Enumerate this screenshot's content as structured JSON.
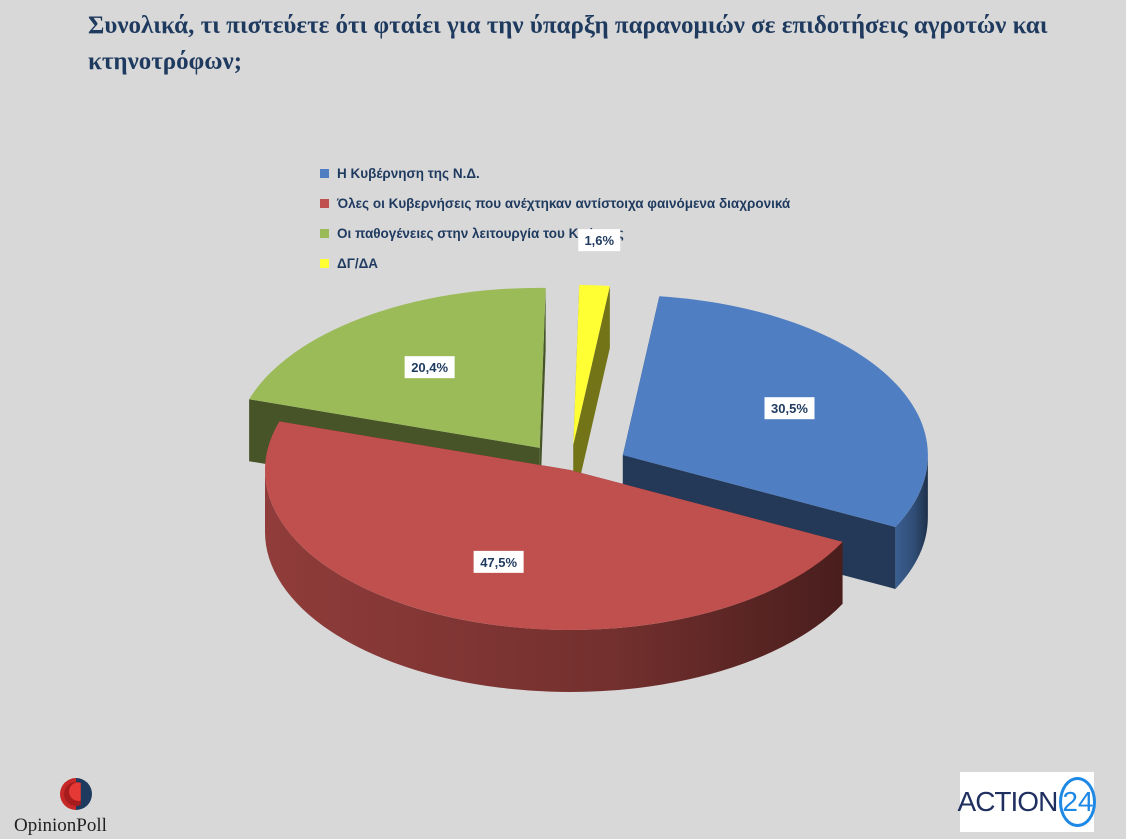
{
  "title": "Συνολικά, τι πιστεύετε ότι φταίει για την ύπαρξη παρανομιών σε επιδοτήσεις αγροτών και κτηνοτρόφων;",
  "chart_data": {
    "type": "pie",
    "title": "Συνολικά, τι πιστεύετε ότι φταίει για την ύπαρξη παρανομιών σε επιδοτήσεις αγροτών και κτηνοτρόφων;",
    "categories": [
      "Η Κυβέρνηση της Ν.Δ.",
      "Όλες οι Κυβερνήσεις που ανέχτηκαν αντίστοιχα φαινόμενα διαχρονικά",
      "Οι παθογένειες στην λειτουργία του Κράτους",
      "ΔΓ/ΔΑ"
    ],
    "values": [
      30.5,
      47.5,
      20.4,
      1.6
    ],
    "data_labels": [
      "30,5%",
      "47,5%",
      "20,4%",
      "1,6%"
    ],
    "colors": [
      "#4f7ec2",
      "#c0504d",
      "#9bbb59",
      "#ffff33"
    ],
    "legend_position": "top",
    "style": "3d-exploded"
  },
  "logos": {
    "left": "OpinionPoll",
    "right_text": "ACTION",
    "right_number": "24"
  }
}
